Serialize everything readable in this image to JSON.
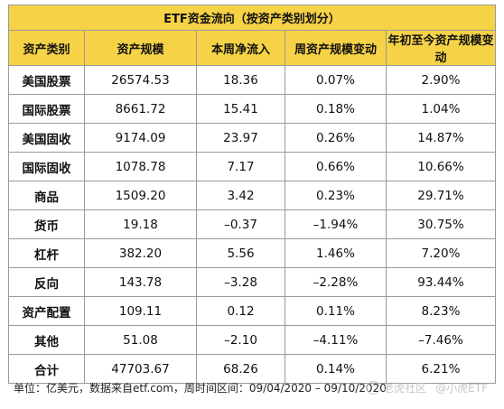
{
  "table": {
    "title": "ETF资金流向（按资产类别划分）",
    "headers": [
      "资产类别",
      "资产规模",
      "本周净流入",
      "周资产规模变动",
      "年初至今资产规模变动"
    ],
    "rows": [
      [
        "美国股票",
        "26574.53",
        "18.36",
        "0.07%",
        "2.90%"
      ],
      [
        "国际股票",
        "8661.72",
        "15.41",
        "0.18%",
        "1.04%"
      ],
      [
        "美国固收",
        "9174.09",
        "23.97",
        "0.26%",
        "14.87%"
      ],
      [
        "国际固收",
        "1078.78",
        "7.17",
        "0.66%",
        "10.66%"
      ],
      [
        "商品",
        "1509.20",
        "3.42",
        "0.23%",
        "29.71%"
      ],
      [
        "货币",
        "19.18",
        "–0.37",
        "–1.94%",
        "30.75%"
      ],
      [
        "杠杆",
        "382.20",
        "5.56",
        "1.46%",
        "7.20%"
      ],
      [
        "反向",
        "143.78",
        "–3.28",
        "–2.28%",
        "93.44%"
      ],
      [
        "资产配置",
        "109.11",
        "0.12",
        "0.11%",
        "8.23%"
      ],
      [
        "其他",
        "51.08",
        "–2.10",
        "–4.11%",
        "–7.46%"
      ],
      [
        "合计",
        "47703.67",
        "68.26",
        "0.14%",
        "6.21%"
      ]
    ]
  },
  "footer": {
    "note": "单位：亿美元，数据来自etf.com，周时间区间：09/04/2020 – 09/10/2020",
    "watermark1": "老虎社区",
    "watermark2": "@小虎ETF"
  },
  "colors": {
    "header_bg": "#f6d247",
    "border": "#9a9a9a"
  }
}
